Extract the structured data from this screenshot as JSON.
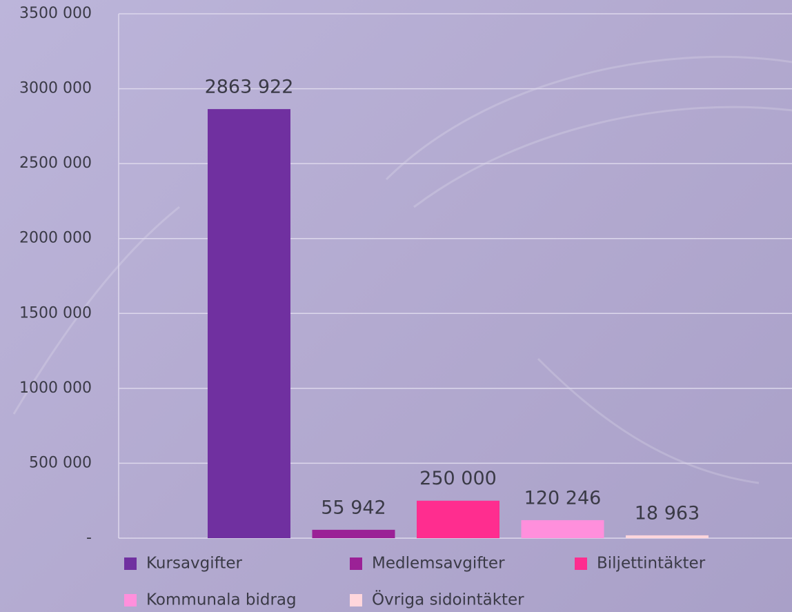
{
  "chart_data": {
    "type": "bar",
    "categories": [
      null
    ],
    "series": [
      {
        "name": "Kursavgifter",
        "color": "#7030a0",
        "values": [
          2863922
        ],
        "value_labels": [
          "2863 922"
        ]
      },
      {
        "name": "Medlemsavgifter",
        "color": "#9b2196",
        "values": [
          55942
        ],
        "value_labels": [
          "55 942"
        ]
      },
      {
        "name": "Biljettintäkter",
        "color": "#ff2d8f",
        "values": [
          250000
        ],
        "value_labels": [
          "250 000"
        ]
      },
      {
        "name": "Kommunala bidrag",
        "color": "#ff8fdc",
        "values": [
          120246
        ],
        "value_labels": [
          "120 246"
        ]
      },
      {
        "name": "Övriga sidointäkter",
        "color": "#ffd6dc",
        "values": [
          18963
        ],
        "value_labels": [
          "18 963"
        ]
      }
    ],
    "ylim": [
      0,
      3500000
    ],
    "yticks": [
      {
        "value": 0,
        "label": "-"
      },
      {
        "value": 500000,
        "label": "500 000"
      },
      {
        "value": 1000000,
        "label": "1000 000"
      },
      {
        "value": 1500000,
        "label": "1500 000"
      },
      {
        "value": 2000000,
        "label": "2000 000"
      },
      {
        "value": 2500000,
        "label": "2500 000"
      },
      {
        "value": 3000000,
        "label": "3000 000"
      },
      {
        "value": 3500000,
        "label": "3500 000"
      }
    ],
    "grid": true
  }
}
